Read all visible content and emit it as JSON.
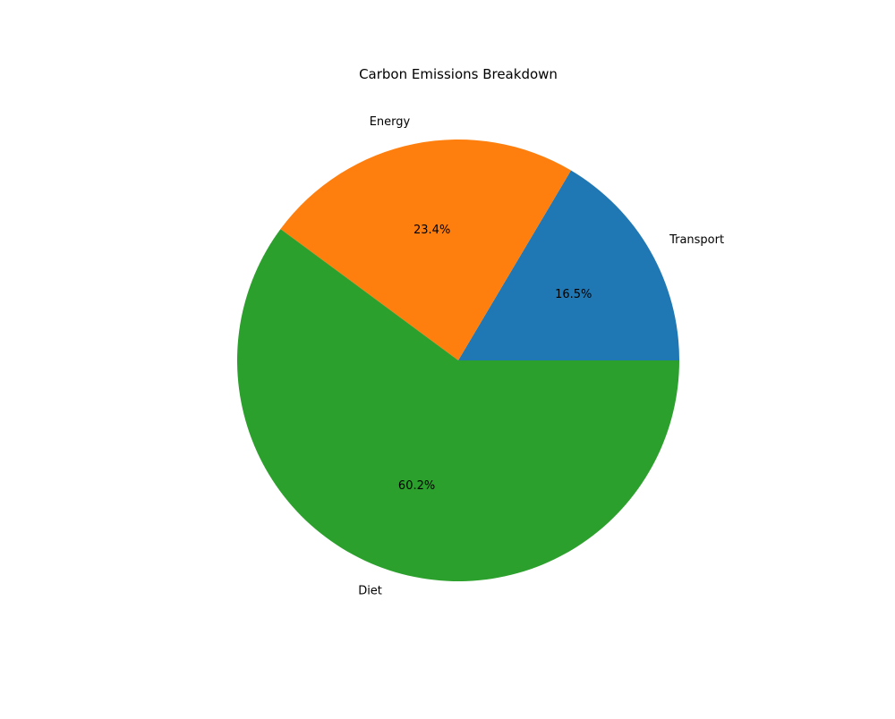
{
  "chart_data": {
    "type": "pie",
    "title": "Carbon Emissions Breakdown",
    "categories": [
      "Transport",
      "Energy",
      "Diet"
    ],
    "values": [
      16.5,
      23.4,
      60.2
    ],
    "percent_labels": [
      "16.5%",
      "23.4%",
      "60.2%"
    ],
    "colors": [
      "#1f77b4",
      "#ff7f0e",
      "#2ca02c"
    ],
    "start_angle_deg": 0,
    "direction": "counterclockwise",
    "legend": "none"
  }
}
